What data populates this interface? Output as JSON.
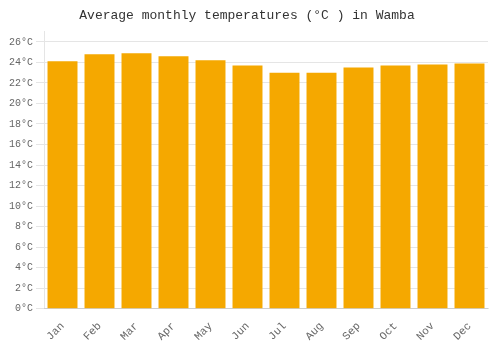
{
  "chart_data": {
    "type": "bar",
    "title": "Average monthly temperatures (°C ) in Wamba",
    "categories": [
      "Jan",
      "Feb",
      "Mar",
      "Apr",
      "May",
      "Jun",
      "Jul",
      "Aug",
      "Sep",
      "Oct",
      "Nov",
      "Dec"
    ],
    "values": [
      24.1,
      24.8,
      24.9,
      24.6,
      24.2,
      23.7,
      23.0,
      23.0,
      23.5,
      23.7,
      23.8,
      23.9
    ],
    "color": "#F5A800",
    "ylim": [
      0,
      27
    ],
    "yticks": [
      {
        "value": 0,
        "label": "0°C"
      },
      {
        "value": 2,
        "label": "2°C"
      },
      {
        "value": 4,
        "label": "4°C"
      },
      {
        "value": 6,
        "label": "6°C"
      },
      {
        "value": 8,
        "label": "8°C"
      },
      {
        "value": 10,
        "label": "10°C"
      },
      {
        "value": 12,
        "label": "12°C"
      },
      {
        "value": 14,
        "label": "14°C"
      },
      {
        "value": 16,
        "label": "16°C"
      },
      {
        "value": 18,
        "label": "18°C"
      },
      {
        "value": 20,
        "label": "20°C"
      },
      {
        "value": 22,
        "label": "22°C"
      },
      {
        "value": 24,
        "label": "24°C"
      },
      {
        "value": 26,
        "label": "26°C"
      }
    ],
    "grid": true
  }
}
